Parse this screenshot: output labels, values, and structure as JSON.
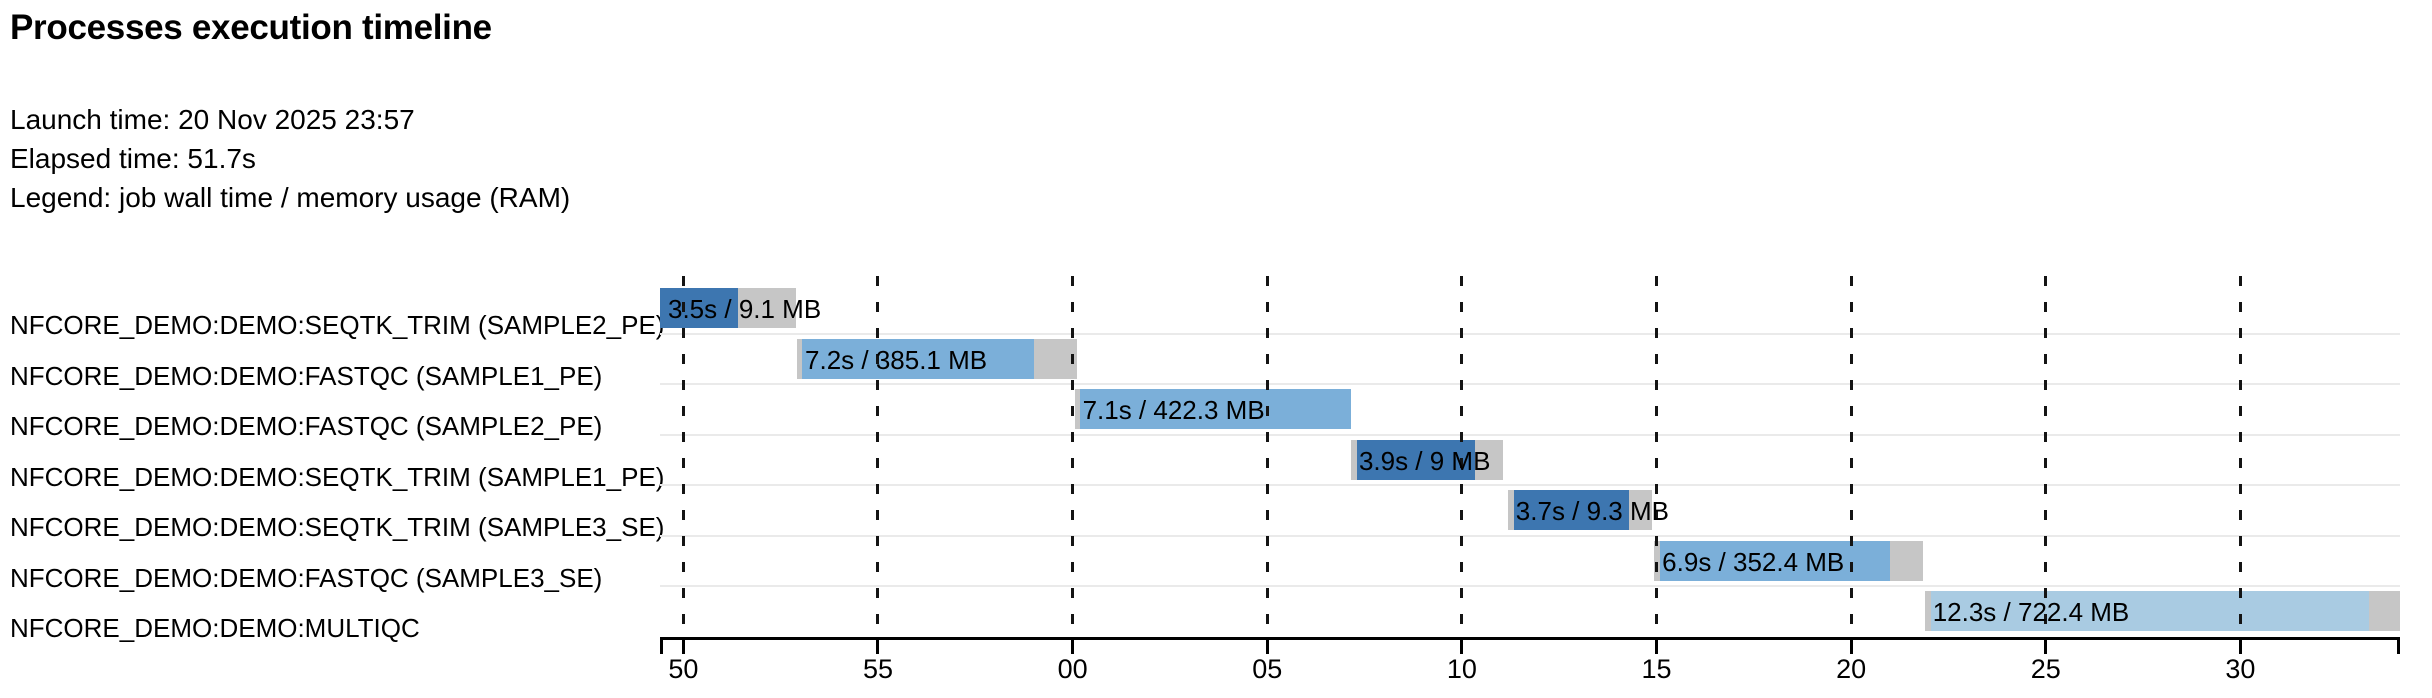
{
  "page": {
    "title": "Processes execution timeline"
  },
  "meta": {
    "launch": "Launch time: 20 Nov 2025 23:57",
    "elapsed": "Elapsed time: 51.7s",
    "legend": "Legend: job wall time / memory usage (RAM)"
  },
  "chart_data": {
    "type": "gantt-timeline",
    "title": "Processes execution timeline",
    "grid": "vertical-dashed",
    "legend_position": "none",
    "x_axis": {
      "unit": "seconds (clock seconds, wrapping past the minute)",
      "domain_seconds": [
        49.4,
        94.1
      ],
      "ticks": [
        {
          "t": 50,
          "label": "50"
        },
        {
          "t": 55,
          "label": "55"
        },
        {
          "t": 60,
          "label": "00"
        },
        {
          "t": 65,
          "label": "05"
        },
        {
          "t": 70,
          "label": "10"
        },
        {
          "t": 75,
          "label": "15"
        },
        {
          "t": 80,
          "label": "20"
        },
        {
          "t": 85,
          "label": "25"
        },
        {
          "t": 90,
          "label": "30"
        }
      ]
    },
    "colors": {
      "seqtk_trim_bar": "#3d76b0",
      "fastqc_bar": "#7bafd9",
      "multiqc_bar": "#a9cbe2",
      "overhead_gray": "#c6c6c6",
      "separator_gray": "#eaeaea",
      "axis_black": "#000000"
    },
    "tasks": [
      {
        "process": "NFCORE_DEMO:DEMO:SEQTK_TRIM (SAMPLE2_PE)",
        "label": "3.5s / 9.1 MB",
        "wall_time_s": 3.5,
        "memory": "9.1 MB",
        "submit_s": 49.4,
        "start_s": 49.4,
        "run_end_s": 51.4,
        "complete_s": 52.9,
        "color": "#3d76b0"
      },
      {
        "process": "NFCORE_DEMO:DEMO:FASTQC (SAMPLE1_PE)",
        "label": "7.2s / 385.1 MB",
        "wall_time_s": 7.2,
        "memory": "385.1 MB",
        "submit_s": 52.92,
        "start_s": 53.05,
        "run_end_s": 59.0,
        "complete_s": 60.12,
        "color": "#7bafd9"
      },
      {
        "process": "NFCORE_DEMO:DEMO:FASTQC (SAMPLE2_PE)",
        "label": "7.1s / 422.3 MB",
        "wall_time_s": 7.1,
        "memory": "422.3 MB",
        "submit_s": 60.05,
        "start_s": 60.18,
        "run_end_s": 67.15,
        "complete_s": 67.15,
        "color": "#7bafd9"
      },
      {
        "process": "NFCORE_DEMO:DEMO:SEQTK_TRIM (SAMPLE1_PE)",
        "label": "3.9s / 9 MB",
        "wall_time_s": 3.9,
        "memory": "9 MB",
        "submit_s": 67.15,
        "start_s": 67.3,
        "run_end_s": 70.35,
        "complete_s": 71.05,
        "color": "#3d76b0"
      },
      {
        "process": "NFCORE_DEMO:DEMO:SEQTK_TRIM (SAMPLE3_SE)",
        "label": "3.7s / 9.3 MB",
        "wall_time_s": 3.7,
        "memory": "9.3 MB",
        "submit_s": 71.18,
        "start_s": 71.33,
        "run_end_s": 74.3,
        "complete_s": 74.88,
        "color": "#3d76b0"
      },
      {
        "process": "NFCORE_DEMO:DEMO:FASTQC (SAMPLE3_SE)",
        "label": "6.9s / 352.4 MB",
        "wall_time_s": 6.9,
        "memory": "352.4 MB",
        "submit_s": 74.94,
        "start_s": 75.09,
        "run_end_s": 81.0,
        "complete_s": 81.84,
        "color": "#7bafd9"
      },
      {
        "process": "NFCORE_DEMO:DEMO:MULTIQC",
        "label": "12.3s / 722.4 MB",
        "wall_time_s": 12.3,
        "memory": "722.4 MB",
        "submit_s": 81.89,
        "start_s": 82.04,
        "run_end_s": 93.3,
        "complete_s": 94.1,
        "color": "#a9cbe2"
      }
    ]
  }
}
